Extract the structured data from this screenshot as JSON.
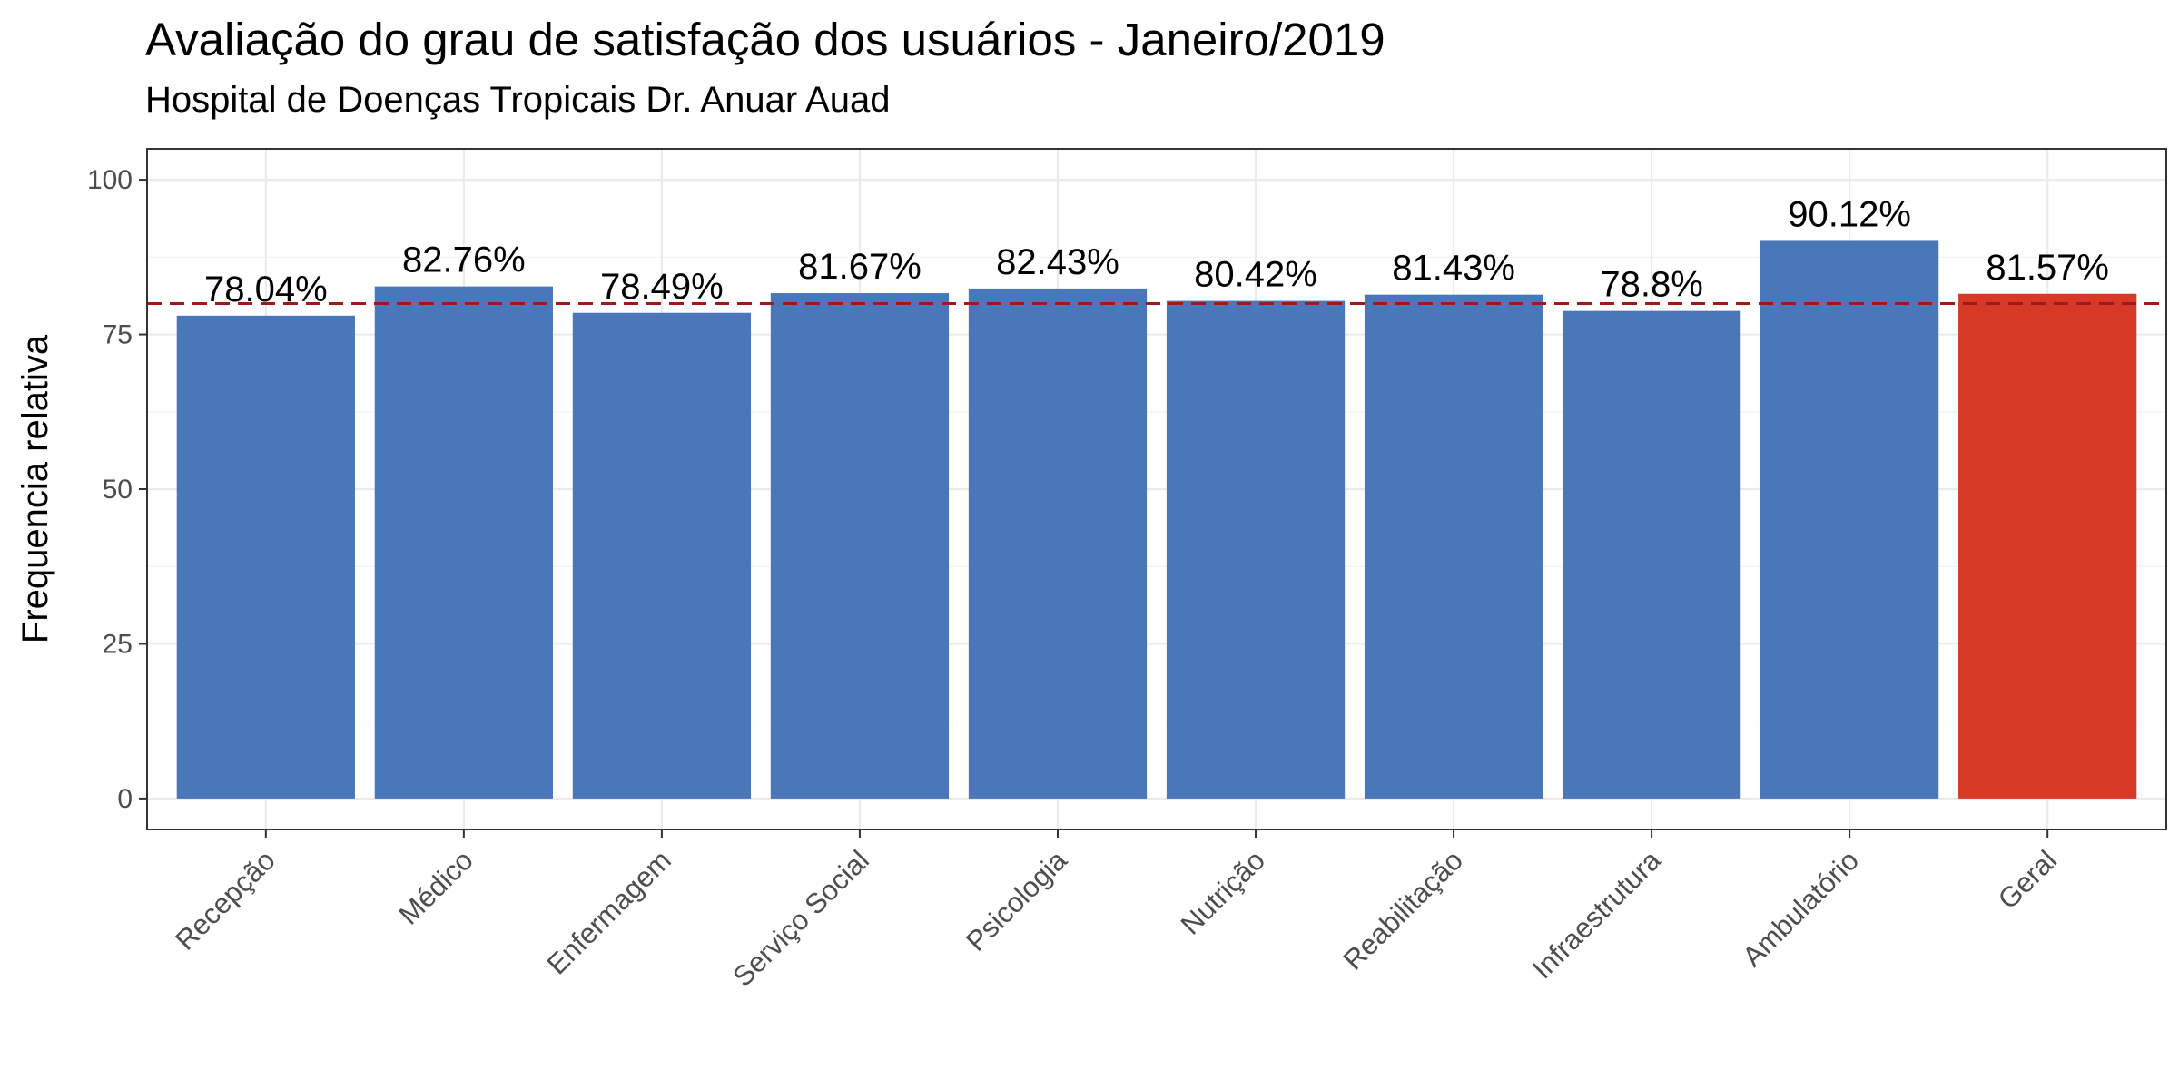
{
  "chart_data": {
    "type": "bar",
    "title": "Avaliação do grau de satisfação dos usuários - Janeiro/2019",
    "subtitle": "Hospital de Doenças Tropicais Dr. Anuar Auad",
    "xlabel": "",
    "ylabel": "Frequencia relativa",
    "categories": [
      "Recepção",
      "Médico",
      "Enfermagem",
      "Serviço Social",
      "Psicologia",
      "Nutrição",
      "Reabilitação",
      "Infraestrutura",
      "Ambulatório",
      "Geral"
    ],
    "values": [
      78.04,
      82.76,
      78.49,
      81.67,
      82.43,
      80.42,
      81.43,
      78.8,
      90.12,
      81.57
    ],
    "data_labels": [
      "78.04%",
      "82.76%",
      "78.49%",
      "81.67%",
      "82.43%",
      "80.42%",
      "81.43%",
      "78.8%",
      "90.12%",
      "81.57%"
    ],
    "bar_colors": [
      "#4a76ba",
      "#4a76ba",
      "#4a76ba",
      "#4a76ba",
      "#4a76ba",
      "#4a76ba",
      "#4a76ba",
      "#4a76ba",
      "#4a76ba",
      "#d63a27"
    ],
    "reference_line": {
      "value": 80,
      "color": "#a01818",
      "style": "dashed"
    },
    "ylim": [
      -5,
      105
    ],
    "yticks": [
      0,
      25,
      50,
      75,
      100
    ],
    "grid": true,
    "legend": "none"
  }
}
